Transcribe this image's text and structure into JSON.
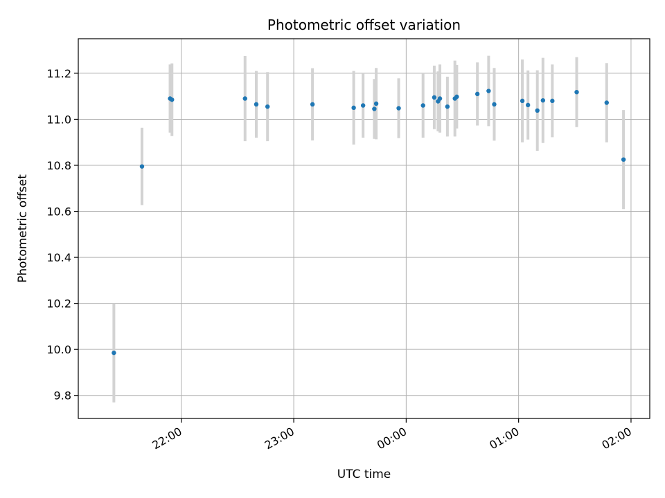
{
  "chart_data": {
    "type": "scatter",
    "title": "Photometric offset variation",
    "xlabel": "UTC time",
    "ylabel": "Photometric offset",
    "x_axis": "time",
    "xlim": [
      "21:05",
      "02:10"
    ],
    "ylim": [
      9.7,
      11.35
    ],
    "x_ticks": [
      "22:00",
      "23:00",
      "00:00",
      "01:00",
      "02:00"
    ],
    "y_ticks": [
      9.8,
      10.0,
      10.2,
      10.4,
      10.6,
      10.8,
      11.0,
      11.2
    ],
    "grid": true,
    "colors": {
      "points": "#1f77b4",
      "errorbars": "#d3d3d3"
    },
    "points": [
      {
        "t": "21:24",
        "y": 9.985,
        "err": 0.215
      },
      {
        "t": "21:39",
        "y": 10.795,
        "err": 0.168
      },
      {
        "t": "21:54",
        "y": 11.09,
        "err": 0.148
      },
      {
        "t": "21:55",
        "y": 11.085,
        "err": 0.158
      },
      {
        "t": "22:34",
        "y": 11.09,
        "err": 0.185
      },
      {
        "t": "22:40",
        "y": 11.065,
        "err": 0.145
      },
      {
        "t": "22:46",
        "y": 11.055,
        "err": 0.15
      },
      {
        "t": "23:10",
        "y": 11.065,
        "err": 0.157
      },
      {
        "t": "23:32",
        "y": 11.05,
        "err": 0.16
      },
      {
        "t": "23:37",
        "y": 11.06,
        "err": 0.14
      },
      {
        "t": "23:43",
        "y": 11.045,
        "err": 0.13
      },
      {
        "t": "23:44",
        "y": 11.068,
        "err": 0.155
      },
      {
        "t": "23:56",
        "y": 11.048,
        "err": 0.13
      },
      {
        "t": "00:09",
        "y": 11.06,
        "err": 0.14
      },
      {
        "t": "00:15",
        "y": 11.095,
        "err": 0.138
      },
      {
        "t": "00:17",
        "y": 11.078,
        "err": 0.13
      },
      {
        "t": "00:18",
        "y": 11.09,
        "err": 0.148
      },
      {
        "t": "00:22",
        "y": 11.055,
        "err": 0.13
      },
      {
        "t": "00:26",
        "y": 11.09,
        "err": 0.165
      },
      {
        "t": "00:27",
        "y": 11.098,
        "err": 0.138
      },
      {
        "t": "00:38",
        "y": 11.11,
        "err": 0.137
      },
      {
        "t": "00:44",
        "y": 11.123,
        "err": 0.153
      },
      {
        "t": "00:47",
        "y": 11.065,
        "err": 0.158
      },
      {
        "t": "01:02",
        "y": 11.08,
        "err": 0.18
      },
      {
        "t": "01:05",
        "y": 11.062,
        "err": 0.15
      },
      {
        "t": "01:10",
        "y": 11.038,
        "err": 0.175
      },
      {
        "t": "01:13",
        "y": 11.082,
        "err": 0.185
      },
      {
        "t": "01:18",
        "y": 11.08,
        "err": 0.158
      },
      {
        "t": "01:31",
        "y": 11.118,
        "err": 0.152
      },
      {
        "t": "01:47",
        "y": 11.072,
        "err": 0.172
      },
      {
        "t": "01:56",
        "y": 10.825,
        "err": 0.215
      }
    ]
  }
}
